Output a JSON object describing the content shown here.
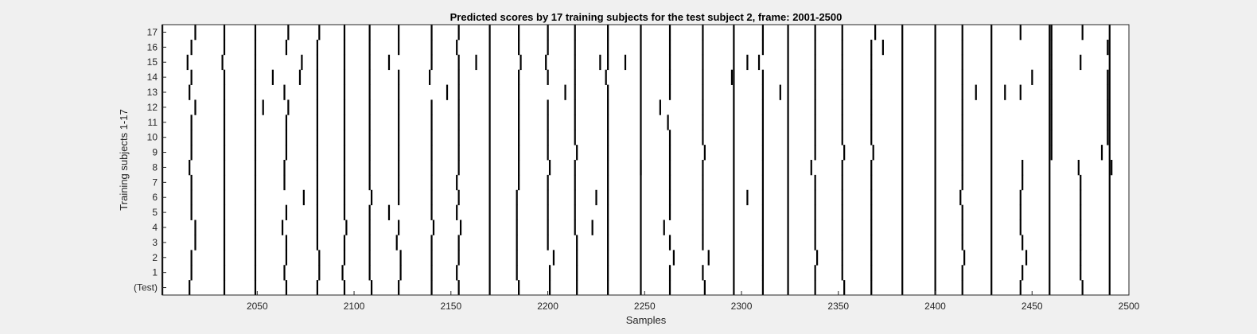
{
  "chart_data": {
    "type": "event-raster",
    "title": "Predicted scores by 17 training subjects for the test subject 2, frame: 2001-2500",
    "xlabel": "Samples",
    "ylabel": "Training subjects 1-17",
    "xlim": [
      2001,
      2500
    ],
    "x_ticks": [
      2050,
      2100,
      2150,
      2200,
      2250,
      2300,
      2350,
      2400,
      2450,
      2500
    ],
    "y_tick_labels": [
      "(Test)",
      "1",
      "2",
      "3",
      "4",
      "5",
      "6",
      "7",
      "8",
      "9",
      "10",
      "11",
      "12",
      "13",
      "14",
      "15",
      "16",
      "17"
    ],
    "colors": {
      "background": "#f0f0f0",
      "plot": "#ffffff",
      "mark": "#000000"
    },
    "common_events": [
      2001,
      2170,
      2248,
      2296,
      2324,
      2383,
      2400,
      2429,
      2459,
      2490
    ],
    "rows": [
      {
        "label": "(Test)",
        "events": [
          2015,
          2033,
          2049,
          2065,
          2081,
          2095,
          2109,
          2123,
          2140,
          2154,
          2185,
          2201,
          2215,
          2231,
          2263,
          2281,
          2311,
          2338,
          2353,
          2367,
          2414,
          2444,
          2476
        ]
      },
      {
        "label": "1",
        "events": [
          2016,
          2033,
          2049,
          2064,
          2082,
          2094,
          2108,
          2124,
          2140,
          2153,
          2184,
          2201,
          2215,
          2231,
          2263,
          2280,
          2311,
          2338,
          2352,
          2367,
          2414,
          2445,
          2475
        ]
      },
      {
        "label": "2",
        "events": [
          2016,
          2033,
          2049,
          2065,
          2082,
          2095,
          2108,
          2124,
          2140,
          2154,
          2184,
          2203,
          2215,
          2231,
          2265,
          2283,
          2311,
          2339,
          2352,
          2367,
          2415,
          2447,
          2475
        ]
      },
      {
        "label": "3",
        "events": [
          2018,
          2033,
          2049,
          2065,
          2081,
          2095,
          2108,
          2122,
          2140,
          2154,
          2184,
          2200,
          2215,
          2231,
          2263,
          2280,
          2311,
          2338,
          2352,
          2367,
          2414,
          2445,
          2475
        ]
      },
      {
        "label": "4",
        "events": [
          2018,
          2033,
          2049,
          2063,
          2081,
          2096,
          2108,
          2123,
          2141,
          2155,
          2184,
          2200,
          2214,
          2223,
          2231,
          2260,
          2280,
          2311,
          2338,
          2352,
          2367,
          2414,
          2444,
          2475
        ]
      },
      {
        "label": "5",
        "events": [
          2016,
          2033,
          2049,
          2065,
          2081,
          2095,
          2108,
          2118,
          2140,
          2153,
          2184,
          2200,
          2214,
          2231,
          2263,
          2280,
          2311,
          2338,
          2352,
          2367,
          2414,
          2444,
          2475
        ]
      },
      {
        "label": "6",
        "events": [
          2016,
          2033,
          2049,
          2074,
          2081,
          2095,
          2109,
          2123,
          2140,
          2154,
          2184,
          2200,
          2214,
          2225,
          2231,
          2263,
          2280,
          2303,
          2311,
          2338,
          2352,
          2367,
          2413,
          2444,
          2475
        ]
      },
      {
        "label": "7",
        "events": [
          2016,
          2033,
          2049,
          2064,
          2081,
          2095,
          2108,
          2123,
          2140,
          2153,
          2185,
          2200,
          2214,
          2231,
          2263,
          2280,
          2311,
          2338,
          2352,
          2367,
          2414,
          2445,
          2475
        ]
      },
      {
        "label": "8",
        "events": [
          2015,
          2033,
          2049,
          2064,
          2081,
          2095,
          2108,
          2123,
          2140,
          2154,
          2185,
          2201,
          2214,
          2231,
          2248,
          2263,
          2280,
          2311,
          2336,
          2352,
          2367,
          2414,
          2445,
          2474,
          2491
        ]
      },
      {
        "label": "9",
        "events": [
          2016,
          2033,
          2049,
          2065,
          2081,
          2095,
          2108,
          2123,
          2140,
          2154,
          2185,
          2200,
          2215,
          2231,
          2263,
          2281,
          2311,
          2338,
          2353,
          2368,
          2414,
          2460,
          2486
        ]
      },
      {
        "label": "10",
        "events": [
          2016,
          2033,
          2049,
          2065,
          2081,
          2095,
          2108,
          2123,
          2140,
          2154,
          2185,
          2200,
          2214,
          2231,
          2263,
          2280,
          2311,
          2338,
          2352,
          2367,
          2414,
          2460,
          2489
        ]
      },
      {
        "label": "11",
        "events": [
          2016,
          2033,
          2049,
          2065,
          2081,
          2095,
          2108,
          2123,
          2140,
          2154,
          2185,
          2200,
          2214,
          2231,
          2262,
          2280,
          2311,
          2338,
          2352,
          2367,
          2414,
          2460,
          2489
        ]
      },
      {
        "label": "12",
        "events": [
          2018,
          2033,
          2049,
          2053,
          2066,
          2081,
          2095,
          2108,
          2123,
          2140,
          2154,
          2185,
          2200,
          2214,
          2231,
          2258,
          2280,
          2311,
          2338,
          2352,
          2367,
          2414,
          2460,
          2489
        ]
      },
      {
        "label": "13",
        "events": [
          2015,
          2033,
          2049,
          2064,
          2081,
          2095,
          2108,
          2123,
          2148,
          2154,
          2185,
          2209,
          2214,
          2231,
          2263,
          2280,
          2311,
          2320,
          2338,
          2352,
          2367,
          2414,
          2421,
          2436,
          2444,
          2460,
          2489
        ]
      },
      {
        "label": "14",
        "events": [
          2016,
          2033,
          2049,
          2058,
          2072,
          2081,
          2095,
          2108,
          2123,
          2139,
          2154,
          2185,
          2200,
          2214,
          2230,
          2263,
          2280,
          2295,
          2311,
          2338,
          2352,
          2367,
          2414,
          2450,
          2460,
          2489
        ]
      },
      {
        "label": "15",
        "events": [
          2014,
          2032,
          2049,
          2073,
          2081,
          2095,
          2108,
          2118,
          2140,
          2154,
          2163,
          2186,
          2199,
          2214,
          2227,
          2231,
          2240,
          2263,
          2280,
          2303,
          2309,
          2338,
          2352,
          2367,
          2414,
          2460,
          2475
        ]
      },
      {
        "label": "16",
        "events": [
          2016,
          2033,
          2049,
          2065,
          2081,
          2095,
          2108,
          2123,
          2140,
          2153,
          2185,
          2200,
          2214,
          2231,
          2263,
          2280,
          2311,
          2338,
          2352,
          2367,
          2373,
          2414,
          2460,
          2489
        ]
      },
      {
        "label": "17",
        "events": [
          2018,
          2033,
          2049,
          2066,
          2082,
          2095,
          2108,
          2123,
          2140,
          2154,
          2185,
          2200,
          2214,
          2231,
          2263,
          2280,
          2311,
          2338,
          2352,
          2369,
          2414,
          2444,
          2460,
          2476
        ]
      }
    ]
  }
}
